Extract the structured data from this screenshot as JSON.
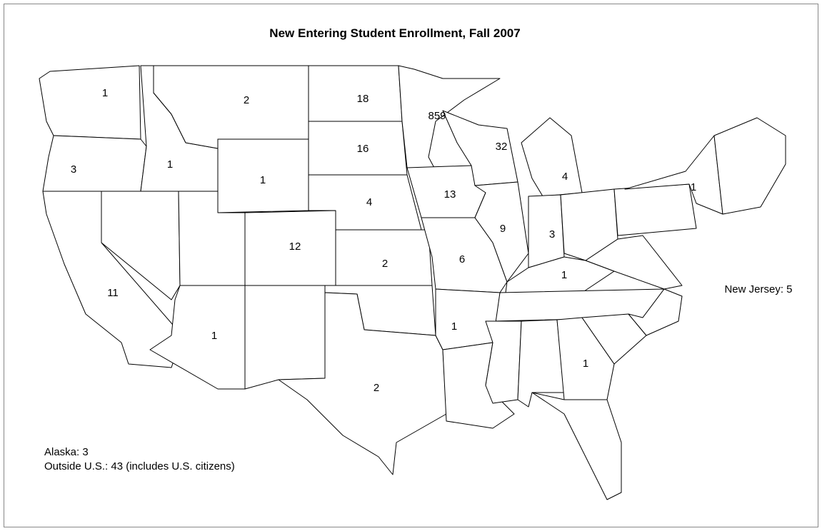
{
  "title": "New Entering Student Enrollment, Fall 2007",
  "state_counts": [
    1,
    2,
    18,
    859,
    32,
    3,
    1,
    1,
    16,
    4,
    13,
    4,
    1,
    12,
    9,
    3,
    2,
    6,
    1,
    11,
    1,
    1,
    2,
    1
  ],
  "notes": {
    "new_jersey": "New Jersey: 5",
    "alaska": "Alaska:  3",
    "outside": "Outside U.S.:  43 (includes U.S. citizens)"
  }
}
